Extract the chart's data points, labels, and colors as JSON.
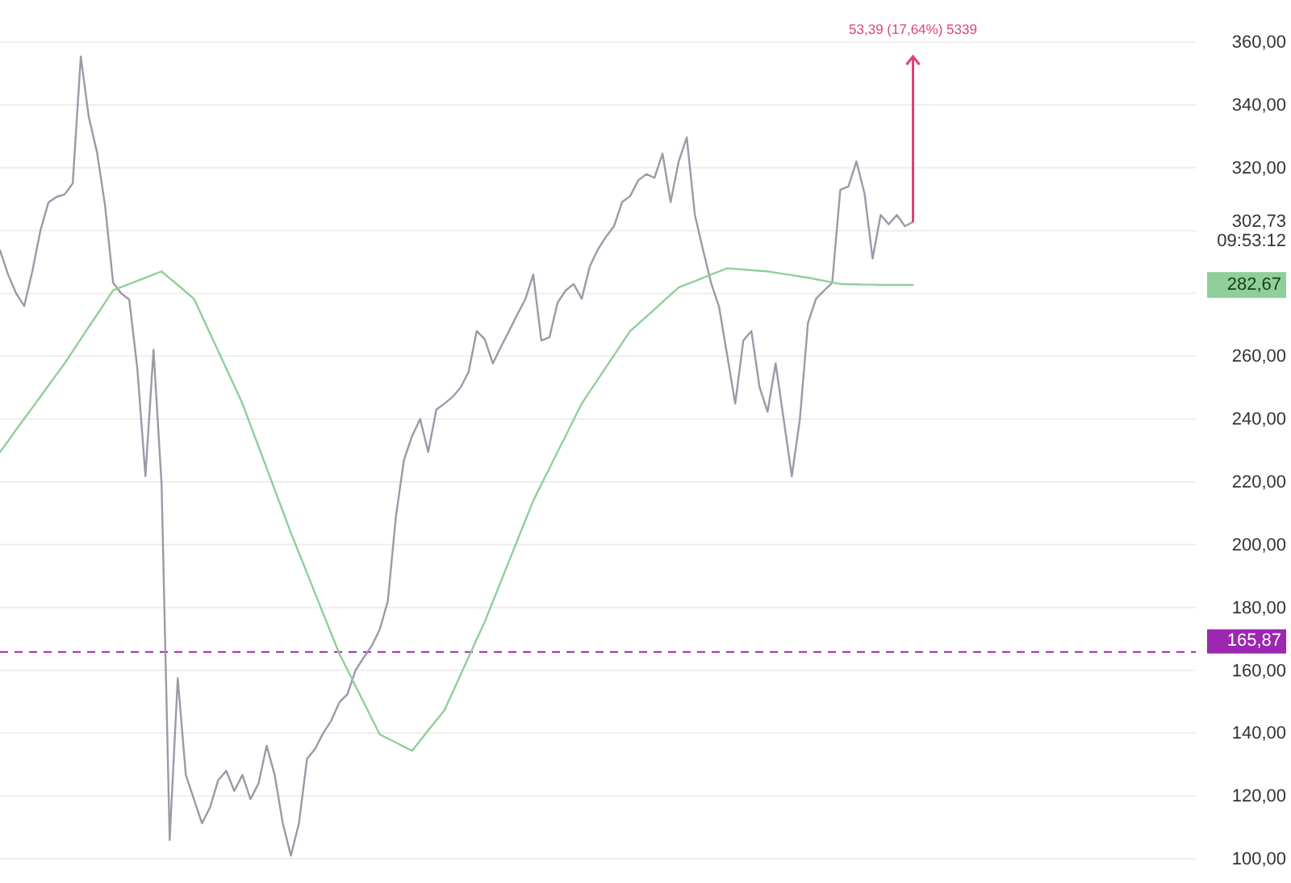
{
  "chart_data": {
    "type": "line",
    "tick_labels": "y",
    "grid": "y",
    "line_style": "solid",
    "marker": "none",
    "categories": [
      null,
      null,
      null,
      null,
      null,
      null,
      null,
      null,
      null,
      null,
      null,
      null,
      null,
      null,
      null,
      null,
      null,
      null,
      null,
      null,
      null,
      null,
      null,
      null,
      null,
      null,
      null,
      null,
      null,
      null,
      null,
      null,
      null,
      null,
      null,
      null,
      null,
      null,
      null,
      null,
      null,
      null,
      null,
      null,
      null,
      null,
      null,
      null,
      null,
      null,
      null,
      null,
      null,
      null,
      null,
      null,
      null,
      null,
      null,
      null,
      null,
      null,
      null,
      null,
      null,
      null,
      null,
      null,
      null,
      null,
      null,
      null,
      null,
      null,
      null,
      null,
      null,
      null,
      null,
      null,
      null,
      null,
      null,
      null,
      null,
      null,
      null,
      null,
      null,
      null,
      null,
      null,
      null,
      null,
      null,
      null,
      null,
      null,
      null,
      null,
      null,
      null,
      null,
      null,
      null,
      null,
      null,
      null,
      null,
      null,
      null,
      null,
      null,
      null,
      null,
      null,
      null,
      null,
      null,
      null,
      null,
      null,
      null,
      null,
      null,
      null,
      null,
      null,
      null,
      null,
      null,
      null,
      null,
      null,
      null,
      null,
      null,
      null,
      null,
      null,
      null,
      null,
      null,
      null,
      null,
      null,
      null,
      null,
      null
    ],
    "ylim": [
      92.3,
      373.4
    ],
    "yticks": [
      {
        "value": 100,
        "label": "100,00"
      },
      {
        "value": 120,
        "label": "120,00"
      },
      {
        "value": 140,
        "label": "140,00"
      },
      {
        "value": 160,
        "label": "160,00"
      },
      {
        "value": 180,
        "label": "180,00"
      },
      {
        "value": 200,
        "label": "200,00"
      },
      {
        "value": 220,
        "label": "220,00"
      },
      {
        "value": 240,
        "label": "240,00"
      },
      {
        "value": 260,
        "label": "260,00"
      },
      {
        "value": 280,
        "label": null
      },
      {
        "value": 300,
        "label": null
      },
      {
        "value": 320,
        "label": "320,00"
      },
      {
        "value": 340,
        "label": "340,00"
      },
      {
        "value": 360,
        "label": "360,00"
      }
    ],
    "series": [
      {
        "color": "#9a9aa8",
        "values": [
          293.7,
          286,
          280,
          276,
          287,
          300,
          309,
          310.7,
          311.5,
          315,
          355.4,
          336,
          325,
          308,
          283.4,
          280,
          278,
          256,
          221.8,
          262,
          219.2,
          106,
          157.5,
          126.7,
          119,
          111.3,
          116.4,
          125,
          128,
          121.6,
          126.7,
          119,
          124,
          136,
          126.7,
          111.3,
          101,
          111.3,
          131.8,
          135,
          140,
          144,
          149.8,
          152.4,
          160,
          164,
          167.8,
          173,
          182,
          209,
          227,
          234.6,
          240,
          229.5,
          243,
          244.9,
          247,
          250,
          255,
          268,
          265.4,
          257.7,
          263,
          268,
          273.2,
          278,
          286,
          265,
          266,
          277,
          280.9,
          283,
          278.3,
          288.6,
          294,
          298,
          301.4,
          309.1,
          311,
          316,
          318,
          316.8,
          324.5,
          309.1,
          322,
          329.7,
          305,
          294,
          283.4,
          275.7,
          260.3,
          244.9,
          265,
          268,
          250.2,
          242.3,
          257.7,
          239.8,
          221.8,
          240,
          270.6,
          278.3,
          280.9,
          283.4,
          313,
          314,
          322,
          311.8,
          291.1,
          305,
          302,
          305,
          301.4,
          302.73,
          null,
          null,
          null,
          null,
          null,
          null,
          null,
          null,
          null,
          null,
          null,
          null,
          null,
          null,
          null,
          null,
          null,
          null,
          null,
          null,
          null,
          null,
          null,
          null,
          null,
          null,
          null,
          null,
          null,
          null,
          null,
          null,
          null,
          null,
          null
        ]
      },
      {
        "color": "#8fcf9a",
        "values": [
          229.5,
          233.0,
          236.6,
          240.1,
          243.6,
          247.1,
          250.7,
          254.2,
          257.7,
          261.6,
          265.5,
          269.4,
          273.2,
          277.1,
          281,
          282,
          283,
          284,
          285,
          286,
          287,
          284.8,
          282.7,
          280.5,
          278.3,
          272.8,
          267.2,
          261.7,
          256.1,
          250.6,
          245,
          238.1,
          231.3,
          224.4,
          217.5,
          210.7,
          203.8,
          197.4,
          191,
          184.5,
          178.1,
          171.7,
          165.3,
          160.2,
          155,
          149.9,
          144.7,
          139.6,
          138.3,
          137,
          135.7,
          134.4,
          137.6,
          140.9,
          144.1,
          147.3,
          152.9,
          158.6,
          164.2,
          169.9,
          175.5,
          181.9,
          188.3,
          194.8,
          201.2,
          207.6,
          214,
          219.2,
          224.3,
          229.5,
          234.6,
          239.8,
          244.9,
          248.8,
          252.6,
          256.5,
          260.3,
          264.2,
          268,
          270.3,
          272.6,
          274.9,
          277.3,
          279.6,
          281.9,
          282.9,
          283.9,
          285,
          286,
          287,
          288,
          287.8,
          287.6,
          287.4,
          287.2,
          287,
          286.6,
          286.2,
          285.8,
          285.4,
          285,
          284.5,
          284,
          283.5,
          283,
          282.9,
          282.9,
          282.8,
          282.8,
          282.7,
          282.7,
          282.7,
          282.7,
          282.67,
          null,
          null,
          null,
          null,
          null,
          null,
          null,
          null,
          null,
          null,
          null,
          null,
          null,
          null,
          null,
          null,
          null,
          null,
          null,
          null,
          null,
          null,
          null,
          null,
          null,
          null,
          null,
          null,
          null,
          null,
          null,
          null,
          null,
          null,
          null
        ]
      }
    ],
    "ref_lines": [
      {
        "axis": "y",
        "value": 165.87,
        "label": "165,87",
        "color": "#9c27b0",
        "line_style": "dashed"
      }
    ],
    "annotations": [
      "53,39 (17,64%) 5339",
      "302,73\n09:53:12",
      "282,67"
    ]
  }
}
